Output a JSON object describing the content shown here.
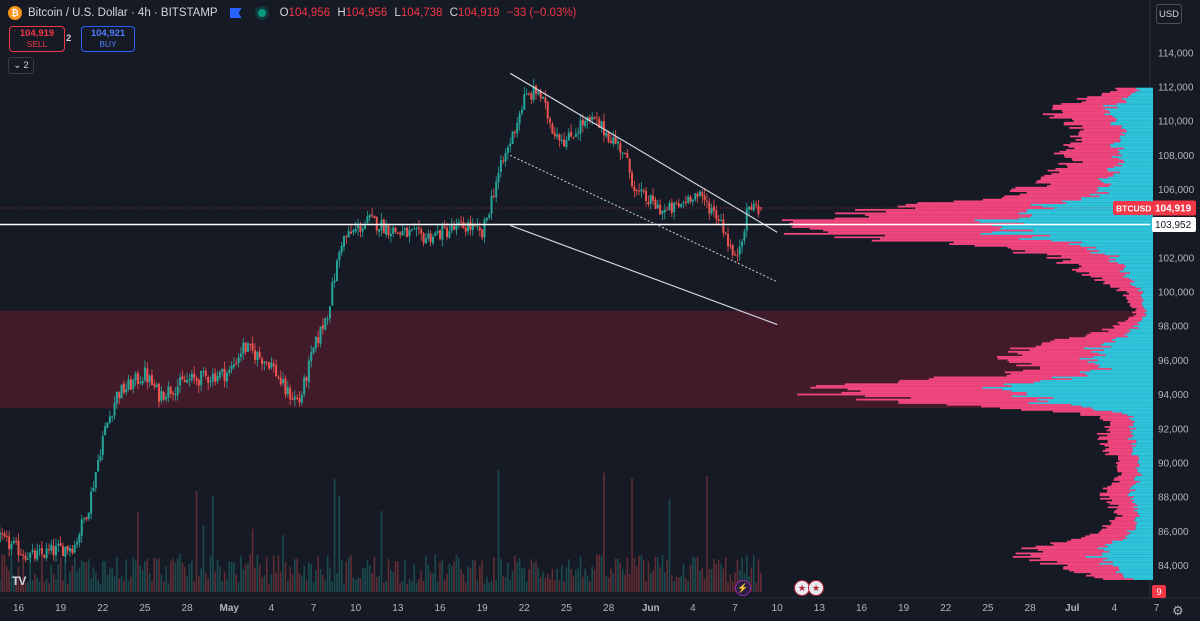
{
  "header": {
    "symbol_icon": "bitcoin-icon",
    "title": "Bitcoin / U.S. Dollar · 4h · BITSTAMP",
    "ohlc": {
      "o_label": "O",
      "o": "104,956",
      "h_label": "H",
      "h": "104,956",
      "l_label": "L",
      "l": "104,738",
      "c_label": "C",
      "c": "104,919",
      "change": "−33 (−0.03%)"
    }
  },
  "trade": {
    "sell_price": "104,919",
    "sell_label": "SELL",
    "spread": "2",
    "buy_price": "104,921",
    "buy_label": "BUY"
  },
  "indicators_toggle": "2",
  "currency": "USD",
  "logo": "TV",
  "colors": {
    "bg": "#161a25",
    "up": "#26a69a",
    "down": "#ef5350",
    "vp_up": "#2ec5dc",
    "vp_down": "#f0467d",
    "zone": "#4a1c2b",
    "line": "#ffffff",
    "tag_red": "#f23645"
  },
  "events": [
    {
      "icon": "lightning-icon",
      "date": "Jun 7"
    },
    {
      "icon": "us-flag-icon",
      "date": "Jun 12"
    },
    {
      "icon": "us-flag-icon",
      "date": "Jun 13"
    }
  ],
  "chart_data": {
    "type": "candlestick",
    "ylim": [
      82900,
      115400
    ],
    "y_ticks": [
      84000,
      86000,
      88000,
      90000,
      92000,
      94000,
      96000,
      98000,
      100000,
      102000,
      104000,
      106000,
      108000,
      110000,
      112000,
      114000
    ],
    "x_ticks": [
      "16",
      "19",
      "22",
      "25",
      "28",
      "May",
      "4",
      "7",
      "10",
      "13",
      "16",
      "19",
      "22",
      "25",
      "28",
      "Jun",
      "4",
      "7",
      "10",
      "13",
      "16",
      "19",
      "22",
      "25",
      "28",
      "Jul",
      "4",
      "7"
    ],
    "anchors": [
      [
        "Apr 14",
        85800
      ],
      [
        "Apr 17",
        84500
      ],
      [
        "Apr 20",
        85200
      ],
      [
        "Apr 21",
        87500
      ],
      [
        "Apr 22",
        91500
      ],
      [
        "Apr 23",
        94000
      ],
      [
        "Apr 25",
        95200
      ],
      [
        "Apr 26",
        94000
      ],
      [
        "Apr 28",
        94800
      ],
      [
        "May 1",
        95300
      ],
      [
        "May 2",
        96800
      ],
      [
        "May 4",
        95800
      ],
      [
        "May 5",
        94200
      ],
      [
        "May 6",
        93600
      ],
      [
        "May 7",
        96600
      ],
      [
        "May 8",
        98800
      ],
      [
        "May 9",
        103000
      ],
      [
        "May 11",
        104200
      ],
      [
        "May 13",
        103500
      ],
      [
        "May 15",
        103200
      ],
      [
        "May 17",
        103700
      ],
      [
        "May 18",
        103900
      ],
      [
        "May 19",
        103300
      ],
      [
        "May 20",
        106500
      ],
      [
        "May 21",
        108800
      ],
      [
        "May 22",
        111300
      ],
      [
        "May 23",
        111800
      ],
      [
        "May 24",
        109600
      ],
      [
        "May 25",
        108800
      ],
      [
        "May 26",
        109800
      ],
      [
        "May 27",
        110000
      ],
      [
        "May 28",
        109200
      ],
      [
        "May 29",
        108300
      ],
      [
        "May 30",
        105800
      ],
      [
        "Jun 1",
        104700
      ],
      [
        "Jun 2",
        105000
      ],
      [
        "Jun 3",
        105800
      ],
      [
        "Jun 4",
        105200
      ],
      [
        "Jun 5",
        104200
      ],
      [
        "Jun 6",
        101800
      ],
      [
        "Jun 7",
        105000
      ],
      [
        "Jun 7 20:00",
        104919
      ]
    ],
    "last_price": {
      "label": "BTCUSD",
      "value": "104,919"
    },
    "horizontal_line": {
      "value": "103,952"
    },
    "zone": {
      "from": 93200,
      "to": 98900
    },
    "channel": {
      "upper": [
        [
          "May 21",
          112800
        ],
        [
          "Jun 9",
          103500
        ]
      ],
      "middle": [
        [
          "May 21",
          108000
        ],
        [
          "Jun 9",
          100600
        ]
      ],
      "lower": [
        [
          "May 21",
          103900
        ],
        [
          "Jun 9",
          98100
        ]
      ]
    },
    "volume_profile": "up/down histogram of volume by price level on the right edge",
    "current_day_label": "9"
  }
}
